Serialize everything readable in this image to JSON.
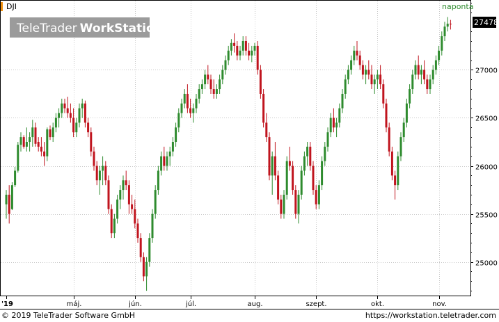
{
  "symbol": "DJI",
  "interval": "naponta",
  "logo": {
    "part1": "TeleTrader",
    "part2": "WorkStation"
  },
  "footer": {
    "copyright": "© 2019 TeleTrader Software GmbH",
    "url": "https://workstation.teletrader.com"
  },
  "colors": {
    "up": "#2e8b2e",
    "down": "#c0141e",
    "grid": "#c8c8c8"
  },
  "chart_data": {
    "type": "candlestick",
    "title": "DJI",
    "interval_label": "naponta",
    "last_price": "27478",
    "ylim": [
      24650,
      27720
    ],
    "y_ticks": [
      25000,
      25500,
      26000,
      26500,
      27000
    ],
    "x_tick_labels": [
      "'19",
      "máj.",
      "jún.",
      "júl.",
      "aug.",
      "szept.",
      "okt.",
      "nov."
    ],
    "x_tick_index": [
      0,
      23,
      44,
      63,
      85,
      106,
      127,
      148
    ],
    "bars": [
      [
        25600,
        25750,
        25450,
        25700
      ],
      [
        25700,
        25800,
        25400,
        25500
      ],
      [
        25550,
        25830,
        25540,
        25800
      ],
      [
        25800,
        25990,
        25780,
        25950
      ],
      [
        25950,
        26250,
        25930,
        26220
      ],
      [
        26220,
        26350,
        26150,
        26300
      ],
      [
        26300,
        26320,
        26180,
        26200
      ],
      [
        26200,
        26400,
        26150,
        26250
      ],
      [
        26250,
        26350,
        26150,
        26300
      ],
      [
        26300,
        26480,
        26200,
        26400
      ],
      [
        26400,
        26450,
        26200,
        26230
      ],
      [
        26250,
        26300,
        26150,
        26200
      ],
      [
        26200,
        26300,
        26100,
        26150
      ],
      [
        26150,
        26250,
        26000,
        26100
      ],
      [
        26100,
        26400,
        26050,
        26380
      ],
      [
        26380,
        26420,
        26270,
        26300
      ],
      [
        26300,
        26450,
        26250,
        26400
      ],
      [
        26400,
        26550,
        26350,
        26500
      ],
      [
        26500,
        26600,
        26400,
        26550
      ],
      [
        26550,
        26700,
        26500,
        26650
      ],
      [
        26650,
        26700,
        26550,
        26600
      ],
      [
        26600,
        26720,
        26500,
        26550
      ],
      [
        26550,
        26650,
        26450,
        26500
      ],
      [
        26500,
        26600,
        26300,
        26350
      ],
      [
        26350,
        26500,
        26300,
        26450
      ],
      [
        26450,
        26650,
        26400,
        26600
      ],
      [
        26600,
        26700,
        26500,
        26650
      ],
      [
        26650,
        26680,
        26400,
        26450
      ],
      [
        26450,
        26500,
        26300,
        26350
      ],
      [
        26350,
        26400,
        26100,
        26150
      ],
      [
        26150,
        26200,
        25950,
        26000
      ],
      [
        26000,
        26050,
        25800,
        25850
      ],
      [
        25850,
        26000,
        25700,
        25950
      ],
      [
        25950,
        26100,
        25800,
        26000
      ],
      [
        26000,
        26050,
        25800,
        25850
      ],
      [
        25850,
        25900,
        25500,
        25550
      ],
      [
        25550,
        25600,
        25250,
        25300
      ],
      [
        25300,
        25500,
        25250,
        25450
      ],
      [
        25450,
        25700,
        25400,
        25650
      ],
      [
        25650,
        25800,
        25550,
        25750
      ],
      [
        25750,
        25900,
        25650,
        25850
      ],
      [
        25850,
        25950,
        25750,
        25800
      ],
      [
        25800,
        25850,
        25500,
        25600
      ],
      [
        25600,
        25700,
        25500,
        25550
      ],
      [
        25550,
        25650,
        25350,
        25400
      ],
      [
        25400,
        25450,
        25200,
        25250
      ],
      [
        25250,
        25300,
        25000,
        25050
      ],
      [
        25050,
        25100,
        24800,
        24850
      ],
      [
        24850,
        25050,
        24700,
        25000
      ],
      [
        25000,
        25300,
        24950,
        25250
      ],
      [
        25250,
        25550,
        25200,
        25500
      ],
      [
        25500,
        25800,
        25450,
        25750
      ],
      [
        25750,
        26000,
        25700,
        25950
      ],
      [
        25950,
        26150,
        25900,
        26100
      ],
      [
        26100,
        26200,
        25950,
        26000
      ],
      [
        26000,
        26150,
        25950,
        26100
      ],
      [
        26100,
        26200,
        26000,
        26150
      ],
      [
        26150,
        26300,
        26100,
        26250
      ],
      [
        26250,
        26450,
        26200,
        26400
      ],
      [
        26400,
        26600,
        26350,
        26550
      ],
      [
        26550,
        26700,
        26500,
        26650
      ],
      [
        26650,
        26800,
        26600,
        26750
      ],
      [
        26750,
        26850,
        26550,
        26600
      ],
      [
        26600,
        26700,
        26500,
        26550
      ],
      [
        26550,
        26650,
        26450,
        26600
      ],
      [
        26600,
        26750,
        26550,
        26700
      ],
      [
        26700,
        26850,
        26650,
        26800
      ],
      [
        26800,
        26900,
        26750,
        26850
      ],
      [
        26850,
        27000,
        26800,
        26950
      ],
      [
        26950,
        27050,
        26850,
        26900
      ],
      [
        26900,
        26950,
        26750,
        26800
      ],
      [
        26800,
        26900,
        26700,
        26750
      ],
      [
        26750,
        26850,
        26700,
        26800
      ],
      [
        26800,
        26950,
        26750,
        26900
      ],
      [
        26900,
        27050,
        26850,
        27000
      ],
      [
        27000,
        27150,
        26950,
        27100
      ],
      [
        27100,
        27250,
        27050,
        27200
      ],
      [
        27200,
        27320,
        27150,
        27280
      ],
      [
        27280,
        27380,
        27180,
        27250
      ],
      [
        27250,
        27300,
        27100,
        27150
      ],
      [
        27150,
        27250,
        27100,
        27200
      ],
      [
        27200,
        27350,
        27150,
        27300
      ],
      [
        27300,
        27350,
        27150,
        27200
      ],
      [
        27200,
        27280,
        27100,
        27150
      ],
      [
        27150,
        27250,
        27080,
        27200
      ],
      [
        27200,
        27280,
        27150,
        27250
      ],
      [
        27250,
        27300,
        26950,
        27000
      ],
      [
        27000,
        27050,
        26700,
        26750
      ],
      [
        26750,
        26800,
        26400,
        26450
      ],
      [
        26450,
        26550,
        26250,
        26300
      ],
      [
        26300,
        26350,
        25850,
        25900
      ],
      [
        25900,
        26150,
        25700,
        26100
      ],
      [
        26100,
        26250,
        25850,
        25900
      ],
      [
        25900,
        25950,
        25600,
        25650
      ],
      [
        25650,
        25700,
        25450,
        25500
      ],
      [
        25500,
        25750,
        25450,
        25700
      ],
      [
        25700,
        26100,
        25650,
        26050
      ],
      [
        26050,
        26200,
        25950,
        26000
      ],
      [
        26000,
        26050,
        25700,
        25750
      ],
      [
        25750,
        25800,
        25450,
        25500
      ],
      [
        25500,
        25750,
        25400,
        25700
      ],
      [
        25700,
        26000,
        25650,
        25950
      ],
      [
        25950,
        26150,
        25900,
        26100
      ],
      [
        26100,
        26250,
        26000,
        26200
      ],
      [
        26200,
        26250,
        25950,
        26000
      ],
      [
        26000,
        26050,
        25700,
        25750
      ],
      [
        25750,
        25800,
        25550,
        25600
      ],
      [
        25600,
        25850,
        25550,
        25800
      ],
      [
        25800,
        26100,
        25750,
        26050
      ],
      [
        26050,
        26250,
        26000,
        26200
      ],
      [
        26200,
        26400,
        26150,
        26350
      ],
      [
        26350,
        26550,
        26300,
        26500
      ],
      [
        26500,
        26600,
        26350,
        26400
      ],
      [
        26400,
        26500,
        26300,
        26450
      ],
      [
        26450,
        26650,
        26400,
        26600
      ],
      [
        26600,
        26800,
        26550,
        26750
      ],
      [
        26750,
        26950,
        26700,
        26900
      ],
      [
        26900,
        27050,
        26850,
        27000
      ],
      [
        27000,
        27150,
        26950,
        27100
      ],
      [
        27100,
        27250,
        27050,
        27200
      ],
      [
        27200,
        27300,
        27100,
        27150
      ],
      [
        27150,
        27200,
        27000,
        27050
      ],
      [
        27050,
        27100,
        26900,
        26950
      ],
      [
        26950,
        27050,
        26850,
        27000
      ],
      [
        27000,
        27100,
        26900,
        26950
      ],
      [
        26950,
        27050,
        26800,
        26850
      ],
      [
        26850,
        26950,
        26750,
        26900
      ],
      [
        26900,
        27000,
        26800,
        26950
      ],
      [
        26950,
        27050,
        26800,
        26850
      ],
      [
        26850,
        26900,
        26600,
        26650
      ],
      [
        26650,
        26700,
        26350,
        26400
      ],
      [
        26400,
        26450,
        26100,
        26150
      ],
      [
        26150,
        26200,
        25850,
        25900
      ],
      [
        25900,
        25950,
        25650,
        25800
      ],
      [
        25800,
        26150,
        25750,
        26100
      ],
      [
        26100,
        26350,
        26050,
        26300
      ],
      [
        26300,
        26500,
        26250,
        26450
      ],
      [
        26450,
        26700,
        26400,
        26650
      ],
      [
        26650,
        26850,
        26600,
        26800
      ],
      [
        26800,
        27000,
        26750,
        26950
      ],
      [
        26950,
        27100,
        26900,
        27050
      ],
      [
        27050,
        27150,
        26900,
        26950
      ],
      [
        26950,
        27050,
        26850,
        27000
      ],
      [
        27000,
        27100,
        26850,
        26900
      ],
      [
        26900,
        26950,
        26750,
        26800
      ],
      [
        26800,
        26950,
        26750,
        26900
      ],
      [
        26900,
        27050,
        26850,
        27000
      ],
      [
        27000,
        27150,
        26950,
        27100
      ],
      [
        27100,
        27250,
        27050,
        27200
      ],
      [
        27200,
        27400,
        27150,
        27350
      ],
      [
        27350,
        27500,
        27300,
        27450
      ],
      [
        27450,
        27550,
        27400,
        27480
      ],
      [
        27480,
        27520,
        27420,
        27478
      ]
    ]
  }
}
